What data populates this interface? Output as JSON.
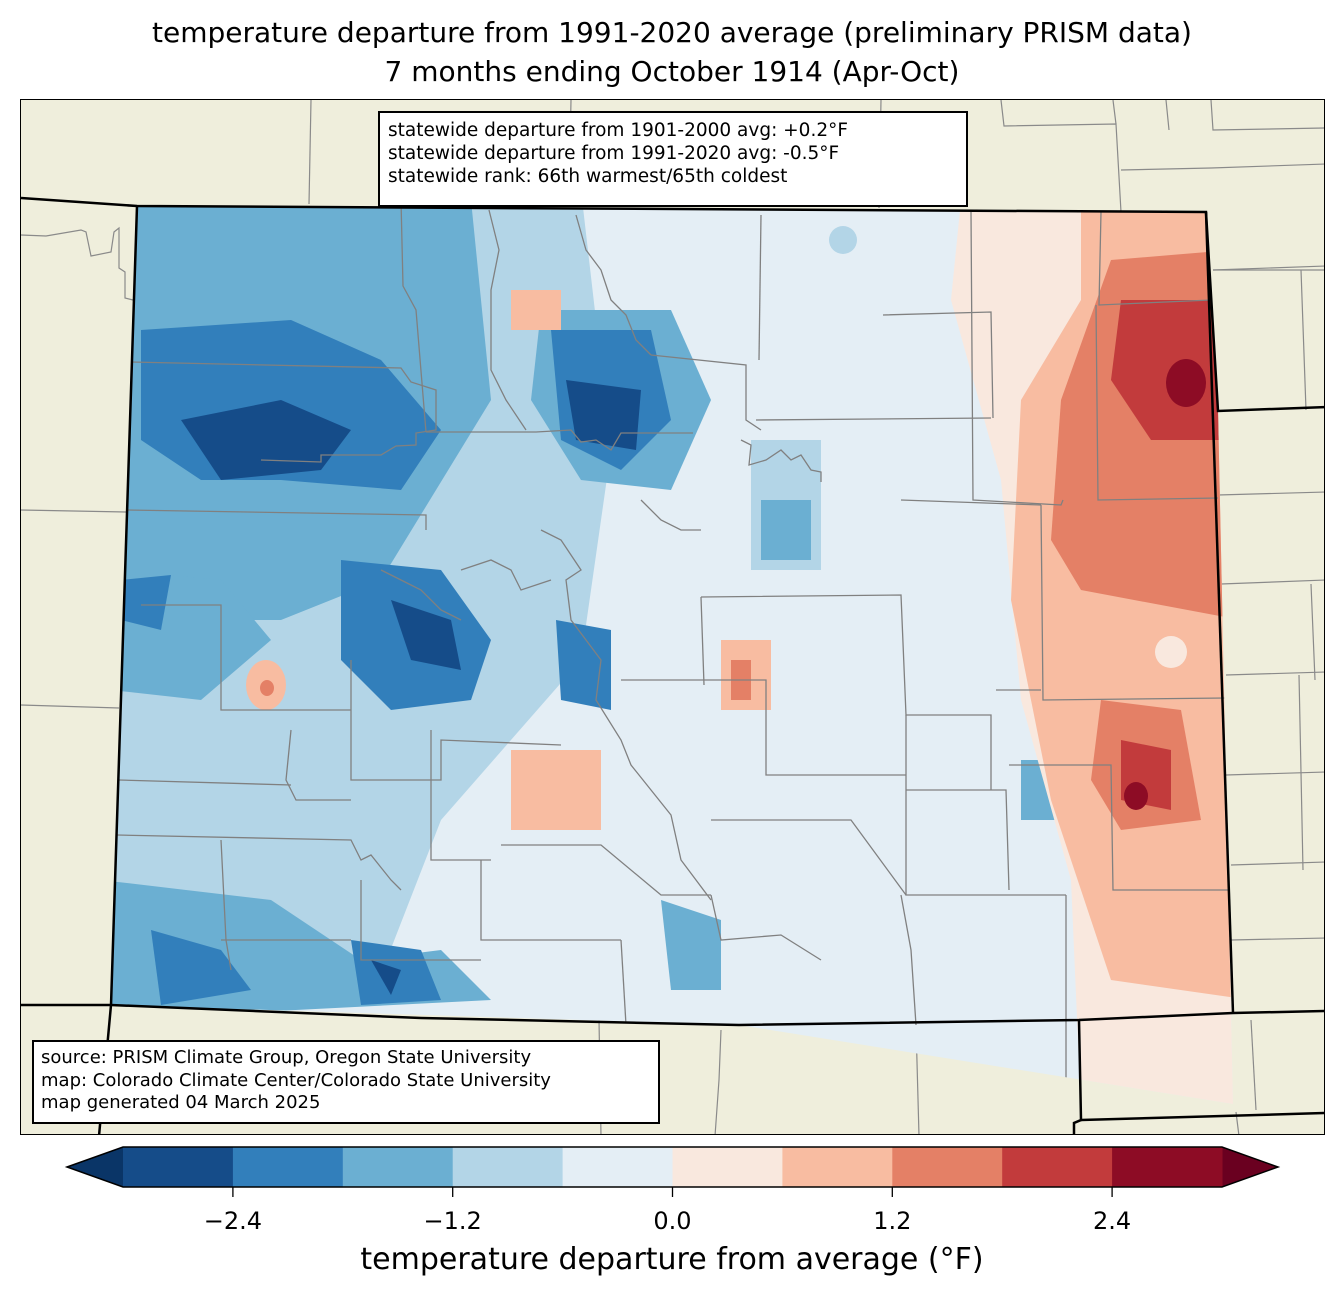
{
  "title": {
    "line1": "temperature departure from 1991-2020 average (preliminary PRISM data)",
    "line2": "7 months ending October 1914 (Apr-Oct)"
  },
  "stats_box": {
    "line1": "statewide departure from 1901-2000 avg: +0.2°F",
    "line2": "statewide departure from 1991-2020 avg: -0.5°F",
    "line3": "statewide rank: 66th warmest/65th coldest"
  },
  "credit_box": {
    "line1": "source: PRISM Climate Group, Oregon State University",
    "line2": "map: Colorado Climate Center/Colorado State University",
    "line3": "map generated 04 March 2025"
  },
  "map": {
    "region": "Colorado",
    "background_color": "#efeedc",
    "state_border_color": "#000000",
    "county_line_color": "#808080"
  },
  "colorbar": {
    "label": "temperature departure from average (°F)",
    "boundaries": [
      -3.0,
      -2.4,
      -1.8,
      -1.2,
      -0.6,
      0.0,
      0.6,
      1.2,
      1.8,
      2.4,
      3.0
    ],
    "colors": [
      "#154c89",
      "#327fbb",
      "#6bafd2",
      "#b3d5e7",
      "#e4eef5",
      "#f9e8de",
      "#f8bca1",
      "#e48066",
      "#c23b3c",
      "#8d0c25"
    ],
    "under_color": "#0a3567",
    "over_color": "#6a0020",
    "ticks": [
      -2.4,
      -1.2,
      0.0,
      1.2,
      2.4
    ],
    "tick_labels": [
      "−2.4",
      "−1.2",
      "0.0",
      "1.2",
      "2.4"
    ],
    "extend": "both"
  }
}
